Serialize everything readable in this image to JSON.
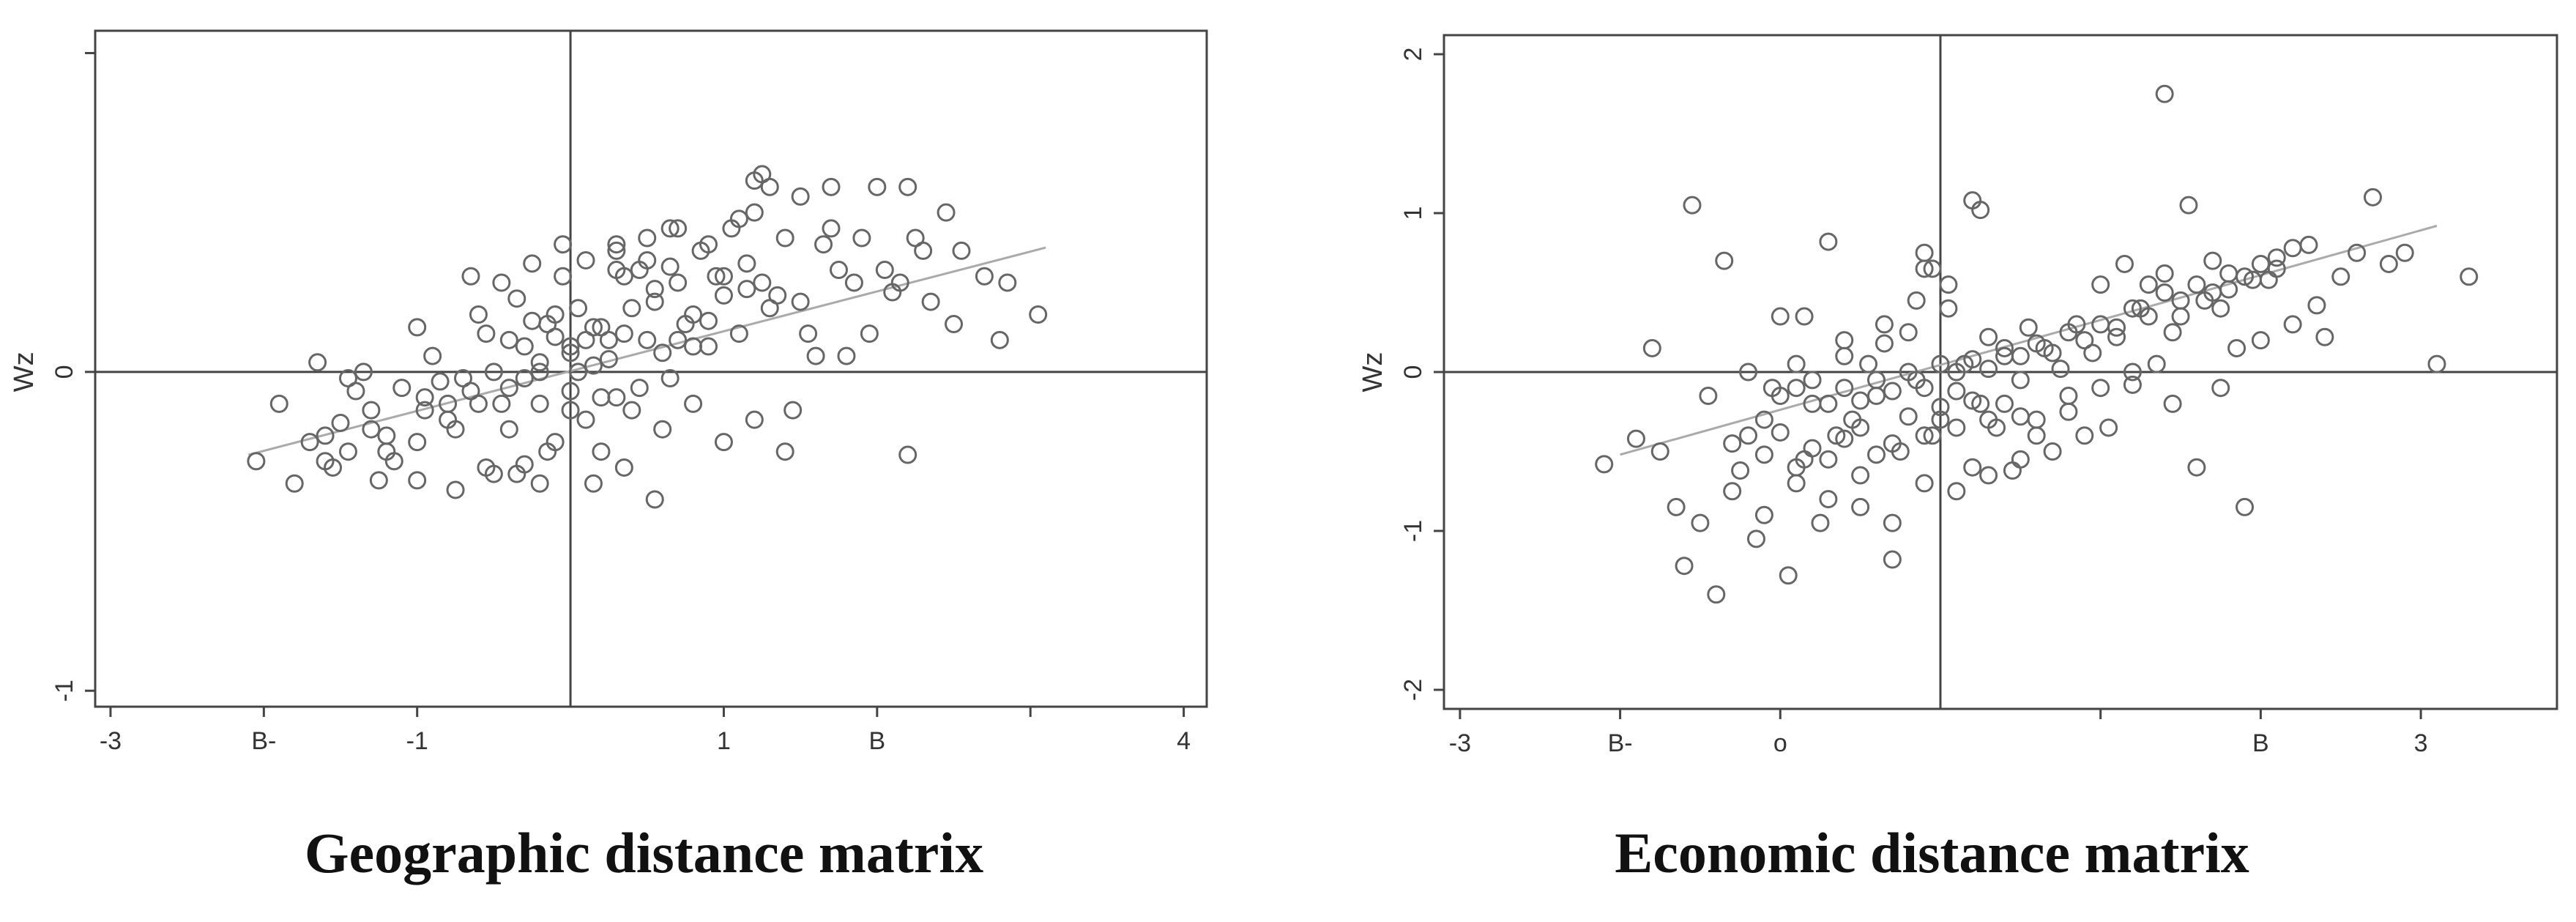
{
  "chart_data": [
    {
      "type": "scatter",
      "title": "Geographic distance matrix",
      "xlabel": "",
      "ylabel": "Wz",
      "xlim": [
        -3.1,
        4.15
      ],
      "ylim": [
        -1.05,
        1.07
      ],
      "x_tick_labels": [
        {
          "value": -3,
          "label": "-3"
        },
        {
          "value": -2,
          "label": "B-"
        },
        {
          "value": -1,
          "label": "-1"
        },
        {
          "value": 1,
          "label": "1"
        },
        {
          "value": 2,
          "label": "B"
        },
        {
          "value": 4,
          "label": "4"
        }
      ],
      "x_minor_ticks": [
        3
      ],
      "y_tick_labels": [
        {
          "value": 0,
          "label": "0"
        },
        {
          "value": -1,
          "label": "-1"
        }
      ],
      "y_minor_ticks": [
        1
      ],
      "axis_lines": {
        "x": 0,
        "y": 0
      },
      "fit_line": {
        "x": [
          -2.1,
          3.1
        ],
        "y": [
          -0.26,
          0.39
        ]
      },
      "points": [
        [
          -2.05,
          -0.28
        ],
        [
          -1.9,
          -0.1
        ],
        [
          -1.8,
          -0.35
        ],
        [
          -1.7,
          -0.22
        ],
        [
          -1.65,
          0.03
        ],
        [
          -1.6,
          -0.28
        ],
        [
          -1.55,
          -0.3
        ],
        [
          -1.5,
          -0.16
        ],
        [
          -1.45,
          -0.02
        ],
        [
          -1.4,
          -0.06
        ],
        [
          -1.35,
          0.0
        ],
        [
          -1.3,
          -0.12
        ],
        [
          -1.25,
          -0.34
        ],
        [
          -1.2,
          -0.2
        ],
        [
          -1.1,
          -0.05
        ],
        [
          -1.0,
          0.14
        ],
        [
          -1.0,
          -0.34
        ],
        [
          -0.95,
          -0.08
        ],
        [
          -0.9,
          0.05
        ],
        [
          -0.85,
          -0.03
        ],
        [
          -0.8,
          -0.1
        ],
        [
          -0.75,
          -0.37
        ],
        [
          -0.7,
          -0.02
        ],
        [
          -0.65,
          -0.06
        ],
        [
          -0.6,
          0.18
        ],
        [
          -0.55,
          0.12
        ],
        [
          -0.5,
          -0.32
        ],
        [
          -0.5,
          0.0
        ],
        [
          -0.45,
          -0.1
        ],
        [
          -0.4,
          0.1
        ],
        [
          -0.35,
          0.23
        ],
        [
          -0.3,
          -0.29
        ],
        [
          -0.3,
          0.08
        ],
        [
          -0.25,
          0.16
        ],
        [
          -0.2,
          -0.35
        ],
        [
          -0.2,
          0.03
        ],
        [
          -0.15,
          0.15
        ],
        [
          -0.1,
          -0.22
        ],
        [
          -0.1,
          0.11
        ],
        [
          -0.05,
          0.3
        ],
        [
          0.0,
          -0.06
        ],
        [
          0.0,
          0.06
        ],
        [
          0.05,
          0.2
        ],
        [
          0.1,
          0.1
        ],
        [
          0.1,
          -0.15
        ],
        [
          0.15,
          0.02
        ],
        [
          0.2,
          -0.25
        ],
        [
          0.2,
          0.14
        ],
        [
          0.25,
          0.04
        ],
        [
          0.3,
          0.32
        ],
        [
          0.3,
          -0.08
        ],
        [
          0.35,
          0.12
        ],
        [
          0.4,
          0.2
        ],
        [
          0.45,
          -0.05
        ],
        [
          0.5,
          0.1
        ],
        [
          0.55,
          0.22
        ],
        [
          0.6,
          0.06
        ],
        [
          0.65,
          -0.02
        ],
        [
          0.7,
          0.28
        ],
        [
          0.75,
          0.15
        ],
        [
          0.8,
          0.18
        ],
        [
          0.85,
          0.38
        ],
        [
          0.9,
          0.08
        ],
        [
          0.95,
          0.3
        ],
        [
          1.0,
          0.24
        ],
        [
          1.05,
          0.45
        ],
        [
          1.1,
          0.12
        ],
        [
          1.15,
          0.34
        ],
        [
          1.2,
          0.5
        ],
        [
          1.3,
          0.2
        ],
        [
          1.4,
          0.42
        ],
        [
          1.5,
          0.22
        ],
        [
          1.6,
          0.05
        ],
        [
          1.7,
          0.45
        ],
        [
          1.8,
          0.05
        ],
        [
          1.9,
          0.42
        ],
        [
          2.1,
          0.25
        ],
        [
          2.3,
          0.38
        ],
        [
          2.5,
          0.15
        ],
        [
          -0.4,
          -0.18
        ],
        [
          -0.3,
          -0.02
        ],
        [
          -0.2,
          0.0
        ],
        [
          -0.1,
          0.18
        ],
        [
          0.0,
          0.08
        ],
        [
          0.05,
          0.0
        ],
        [
          0.15,
          0.14
        ],
        [
          0.25,
          0.1
        ],
        [
          0.35,
          0.3
        ],
        [
          0.45,
          0.32
        ],
        [
          0.55,
          0.26
        ],
        [
          0.65,
          0.33
        ],
        [
          0.7,
          0.1
        ],
        [
          0.8,
          0.08
        ],
        [
          0.9,
          0.16
        ],
        [
          1.0,
          0.3
        ],
        [
          1.15,
          0.26
        ],
        [
          1.25,
          0.28
        ],
        [
          1.35,
          0.24
        ],
        [
          1.45,
          -0.12
        ],
        [
          1.55,
          0.12
        ],
        [
          1.65,
          0.4
        ],
        [
          1.75,
          0.32
        ],
        [
          1.85,
          0.28
        ],
        [
          1.95,
          0.12
        ],
        [
          2.05,
          0.32
        ],
        [
          2.15,
          0.28
        ],
        [
          2.25,
          0.42
        ],
        [
          2.35,
          0.22
        ],
        [
          2.45,
          0.5
        ],
        [
          2.55,
          0.38
        ],
        [
          2.7,
          0.3
        ],
        [
          2.85,
          0.28
        ],
        [
          3.05,
          0.18
        ],
        [
          -1.2,
          -0.25
        ],
        [
          -1.0,
          -0.22
        ],
        [
          -0.8,
          -0.15
        ],
        [
          -0.6,
          -0.1
        ],
        [
          -0.4,
          -0.05
        ],
        [
          -0.2,
          -0.1
        ],
        [
          0.0,
          -0.12
        ],
        [
          0.2,
          -0.08
        ],
        [
          0.4,
          -0.12
        ],
        [
          0.6,
          -0.18
        ],
        [
          0.8,
          -0.1
        ],
        [
          1.0,
          -0.22
        ],
        [
          1.2,
          -0.15
        ],
        [
          1.4,
          -0.25
        ],
        [
          0.3,
          0.4
        ],
        [
          0.5,
          0.42
        ],
        [
          0.7,
          0.45
        ],
        [
          0.9,
          0.4
        ],
        [
          1.1,
          0.48
        ],
        [
          1.3,
          0.58
        ],
        [
          1.5,
          0.55
        ],
        [
          1.7,
          0.58
        ],
        [
          2.0,
          0.58
        ],
        [
          2.2,
          0.58
        ],
        [
          1.2,
          0.6
        ],
        [
          1.25,
          0.62
        ],
        [
          -0.55,
          -0.3
        ],
        [
          -0.35,
          -0.32
        ],
        [
          -0.15,
          -0.25
        ],
        [
          0.15,
          -0.35
        ],
        [
          0.35,
          -0.3
        ],
        [
          0.55,
          -0.4
        ],
        [
          -1.6,
          -0.2
        ],
        [
          -1.45,
          -0.25
        ],
        [
          -1.3,
          -0.18
        ],
        [
          -1.15,
          -0.28
        ],
        [
          -0.95,
          -0.12
        ],
        [
          -0.75,
          -0.18
        ],
        [
          -0.65,
          0.3
        ],
        [
          -0.45,
          0.28
        ],
        [
          -0.25,
          0.34
        ],
        [
          -0.05,
          0.4
        ],
        [
          0.1,
          0.35
        ],
        [
          0.3,
          0.38
        ],
        [
          0.5,
          0.35
        ],
        [
          0.65,
          0.45
        ],
        [
          2.2,
          -0.26
        ],
        [
          2.8,
          0.1
        ]
      ]
    },
    {
      "type": "scatter",
      "title": "Economic distance matrix",
      "xlabel": "",
      "ylabel": "Wz",
      "xlim": [
        -3.1,
        3.85
      ],
      "ylim": [
        -2.12,
        2.12
      ],
      "x_tick_labels": [
        {
          "value": -3,
          "label": "-3"
        },
        {
          "value": -2,
          "label": "B-"
        },
        {
          "value": -1,
          "label": "o"
        },
        {
          "value": 2,
          "label": "B"
        },
        {
          "value": 3,
          "label": "3"
        }
      ],
      "x_minor_ticks": [
        1
      ],
      "y_tick_labels": [
        {
          "value": 2,
          "label": "2"
        },
        {
          "value": 1,
          "label": "1"
        },
        {
          "value": 0,
          "label": "0"
        },
        {
          "value": -1,
          "label": "-1"
        },
        {
          "value": -2,
          "label": "-2"
        }
      ],
      "axis_lines": {
        "x": 0,
        "y": 0
      },
      "fit_line": {
        "x": [
          -2.0,
          3.1
        ],
        "y": [
          -0.52,
          0.92
        ]
      },
      "points": [
        [
          -2.1,
          -0.58
        ],
        [
          -1.9,
          -0.42
        ],
        [
          -1.8,
          0.15
        ],
        [
          -1.75,
          -0.5
        ],
        [
          -1.65,
          -0.85
        ],
        [
          -1.6,
          -1.22
        ],
        [
          -1.55,
          1.05
        ],
        [
          -1.5,
          -0.95
        ],
        [
          -1.45,
          -0.15
        ],
        [
          -1.4,
          -1.4
        ],
        [
          -1.35,
          0.7
        ],
        [
          -1.3,
          -0.45
        ],
        [
          -1.25,
          -0.62
        ],
        [
          -1.2,
          0.0
        ],
        [
          -1.15,
          -1.05
        ],
        [
          -1.1,
          -0.3
        ],
        [
          -1.05,
          -0.1
        ],
        [
          -1.0,
          0.35
        ],
        [
          -0.95,
          -1.28
        ],
        [
          -0.9,
          0.05
        ],
        [
          -0.85,
          -0.55
        ],
        [
          -0.8,
          -0.2
        ],
        [
          -0.75,
          -0.95
        ],
        [
          -0.7,
          0.82
        ],
        [
          -0.65,
          -0.4
        ],
        [
          -0.6,
          0.1
        ],
        [
          -0.55,
          -0.3
        ],
        [
          -0.5,
          -0.65
        ],
        [
          -0.45,
          0.05
        ],
        [
          -0.4,
          -0.15
        ],
        [
          -0.35,
          0.18
        ],
        [
          -0.3,
          -1.18
        ],
        [
          -0.25,
          -0.5
        ],
        [
          -0.2,
          0.25
        ],
        [
          -0.15,
          -0.05
        ],
        [
          -0.1,
          0.65
        ],
        [
          -0.05,
          -0.4
        ],
        [
          0.0,
          -0.3
        ],
        [
          0.05,
          0.4
        ],
        [
          0.1,
          -0.12
        ],
        [
          0.15,
          0.05
        ],
        [
          0.2,
          -0.6
        ],
        [
          0.25,
          -0.2
        ],
        [
          0.3,
          0.22
        ],
        [
          0.35,
          -0.35
        ],
        [
          0.4,
          0.1
        ],
        [
          0.45,
          -0.62
        ],
        [
          0.5,
          -0.05
        ],
        [
          0.55,
          0.28
        ],
        [
          0.6,
          -0.3
        ],
        [
          0.65,
          0.15
        ],
        [
          0.7,
          -0.5
        ],
        [
          0.75,
          0.02
        ],
        [
          0.8,
          -0.15
        ],
        [
          0.85,
          0.3
        ],
        [
          0.9,
          -0.4
        ],
        [
          0.95,
          0.12
        ],
        [
          1.0,
          0.55
        ],
        [
          1.05,
          -0.35
        ],
        [
          1.1,
          0.22
        ],
        [
          1.15,
          0.68
        ],
        [
          1.2,
          -0.08
        ],
        [
          1.25,
          0.4
        ],
        [
          1.3,
          0.55
        ],
        [
          1.35,
          0.05
        ],
        [
          1.4,
          0.62
        ],
        [
          1.45,
          -0.2
        ],
        [
          1.5,
          0.35
        ],
        [
          1.55,
          1.05
        ],
        [
          1.6,
          -0.6
        ],
        [
          1.65,
          0.45
        ],
        [
          1.7,
          0.7
        ],
        [
          1.75,
          -0.1
        ],
        [
          1.8,
          0.52
        ],
        [
          1.85,
          0.15
        ],
        [
          1.9,
          -0.85
        ],
        [
          1.95,
          0.58
        ],
        [
          2.0,
          0.2
        ],
        [
          2.1,
          0.72
        ],
        [
          2.2,
          0.3
        ],
        [
          2.3,
          0.8
        ],
        [
          2.4,
          0.22
        ],
        [
          2.5,
          0.6
        ],
        [
          2.6,
          0.75
        ],
        [
          2.7,
          1.1
        ],
        [
          2.8,
          0.68
        ],
        [
          2.9,
          0.75
        ],
        [
          3.1,
          0.05
        ],
        [
          3.3,
          0.6
        ],
        [
          1.4,
          1.75
        ],
        [
          0.2,
          1.08
        ],
        [
          0.25,
          1.02
        ],
        [
          -0.1,
          0.75
        ],
        [
          -0.05,
          0.65
        ],
        [
          -1.2,
          -0.4
        ],
        [
          -1.1,
          -0.52
        ],
        [
          -1.0,
          -0.38
        ],
        [
          -0.9,
          -0.6
        ],
        [
          -0.8,
          -0.48
        ],
        [
          -0.7,
          -0.55
        ],
        [
          -0.6,
          -0.42
        ],
        [
          -0.5,
          -0.35
        ],
        [
          -0.4,
          -0.52
        ],
        [
          -0.3,
          -0.45
        ],
        [
          -0.2,
          -0.28
        ],
        [
          -0.1,
          -0.4
        ],
        [
          0.0,
          -0.22
        ],
        [
          0.1,
          -0.35
        ],
        [
          0.2,
          -0.18
        ],
        [
          0.3,
          -0.3
        ],
        [
          0.4,
          -0.2
        ],
        [
          0.5,
          -0.28
        ],
        [
          -1.0,
          -0.15
        ],
        [
          -0.9,
          -0.1
        ],
        [
          -0.8,
          -0.05
        ],
        [
          -0.7,
          -0.2
        ],
        [
          -0.6,
          -0.1
        ],
        [
          -0.5,
          -0.18
        ],
        [
          -0.4,
          -0.05
        ],
        [
          -0.3,
          -0.12
        ],
        [
          -0.2,
          0.0
        ],
        [
          -0.1,
          -0.1
        ],
        [
          0.0,
          0.05
        ],
        [
          0.1,
          0.0
        ],
        [
          0.2,
          0.08
        ],
        [
          0.3,
          0.02
        ],
        [
          0.4,
          0.15
        ],
        [
          0.5,
          0.1
        ],
        [
          0.6,
          0.18
        ],
        [
          0.7,
          0.12
        ],
        [
          0.8,
          0.25
        ],
        [
          0.9,
          0.2
        ],
        [
          1.0,
          0.3
        ],
        [
          1.1,
          0.28
        ],
        [
          1.2,
          0.4
        ],
        [
          1.3,
          0.35
        ],
        [
          1.4,
          0.5
        ],
        [
          1.5,
          0.45
        ],
        [
          1.6,
          0.55
        ],
        [
          1.7,
          0.5
        ],
        [
          1.8,
          0.62
        ],
        [
          1.9,
          0.6
        ],
        [
          2.0,
          0.68
        ],
        [
          2.1,
          0.65
        ],
        [
          2.2,
          0.78
        ],
        [
          -0.5,
          -0.85
        ],
        [
          -0.3,
          -0.95
        ],
        [
          -0.1,
          -0.7
        ],
        [
          0.1,
          -0.75
        ],
        [
          0.3,
          -0.65
        ],
        [
          0.5,
          -0.55
        ],
        [
          -1.3,
          -0.75
        ],
        [
          -1.1,
          -0.9
        ],
        [
          -0.9,
          -0.7
        ],
        [
          -0.7,
          -0.8
        ],
        [
          0.6,
          -0.4
        ],
        [
          0.8,
          -0.25
        ],
        [
          1.0,
          -0.1
        ],
        [
          1.2,
          0.0
        ],
        [
          -0.85,
          0.35
        ],
        [
          -0.6,
          0.2
        ],
        [
          -0.35,
          0.3
        ],
        [
          -0.15,
          0.45
        ],
        [
          0.05,
          0.55
        ],
        [
          1.45,
          0.25
        ],
        [
          1.75,
          0.4
        ],
        [
          2.05,
          0.58
        ],
        [
          2.35,
          0.42
        ]
      ]
    }
  ]
}
